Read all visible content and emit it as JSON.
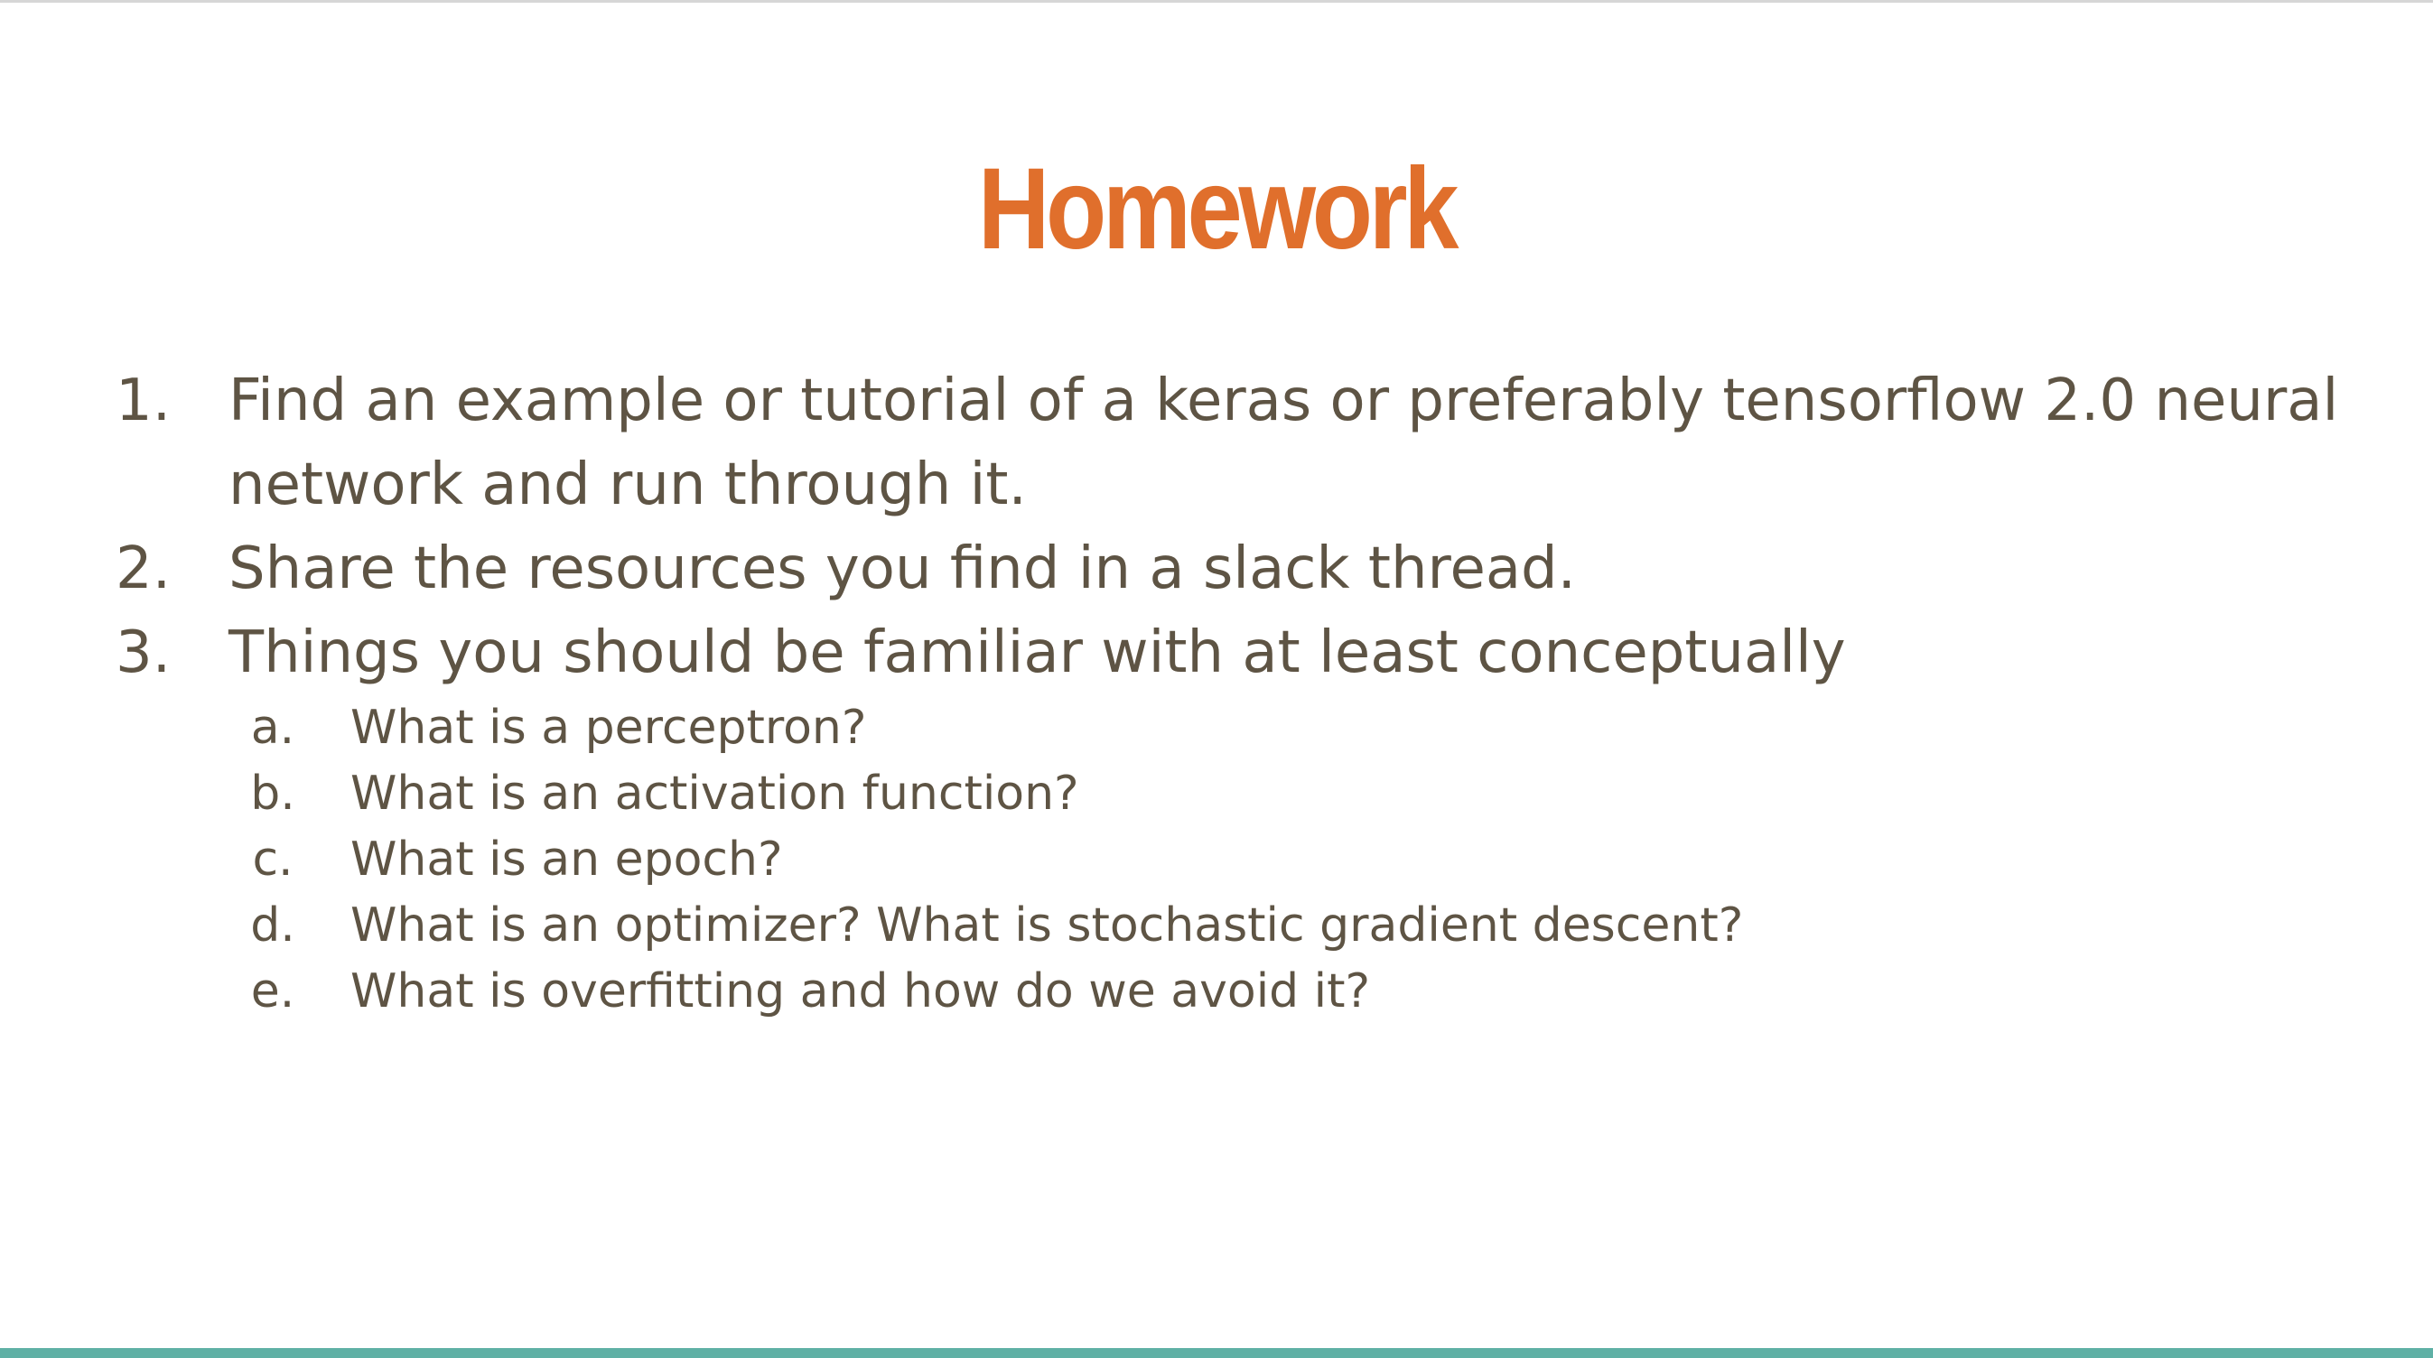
{
  "slide": {
    "title": "Homework",
    "items": [
      {
        "number": "1.",
        "text": "Find an example or tutorial of a keras or preferably tensorflow 2.0 neural network and run through it."
      },
      {
        "number": "2.",
        "text": "Share the resources you find in a slack thread."
      },
      {
        "number": "3.",
        "text": "Things you should be familiar with at least conceptually"
      }
    ],
    "subitems": [
      {
        "letter": "a.",
        "text": "What is a perceptron?"
      },
      {
        "letter": "b.",
        "text": "What is an activation function?"
      },
      {
        "letter": "c.",
        "text": "What is an epoch?"
      },
      {
        "letter": "d.",
        "text": "What is an optimizer? What is stochastic gradient descent?"
      },
      {
        "letter": "e.",
        "text": "What is overfitting and how do we avoid it?"
      }
    ]
  },
  "colors": {
    "title": "#e06f2c",
    "body_text": "#5e5444",
    "bottom_bar": "#5fb0a5",
    "top_border": "#d6d6d6"
  }
}
